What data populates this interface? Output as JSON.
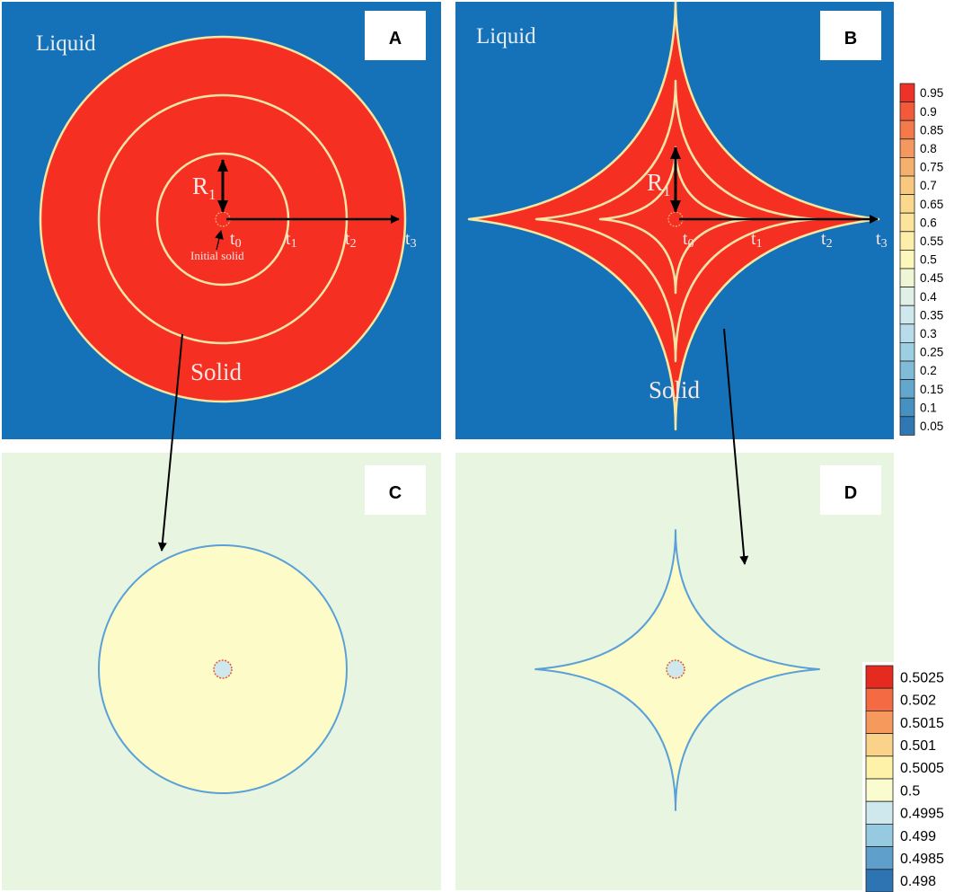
{
  "panels": {
    "a": {
      "letter": "A",
      "liquid": "Liquid",
      "solid": "Solid",
      "r1": "R",
      "r1_sub": "1",
      "initial_solid": "Initial solid",
      "times": [
        {
          "t": "t",
          "s": "0"
        },
        {
          "t": "t",
          "s": "1"
        },
        {
          "t": "t",
          "s": "2"
        },
        {
          "t": "t",
          "s": "3"
        }
      ]
    },
    "b": {
      "letter": "B",
      "liquid": "Liquid",
      "solid": "Solid",
      "r1": "R",
      "r1_sub": "1",
      "times": [
        {
          "t": "t",
          "s": "0"
        },
        {
          "t": "t",
          "s": "1"
        },
        {
          "t": "t",
          "s": "2"
        },
        {
          "t": "t",
          "s": "3"
        }
      ]
    },
    "c": {
      "letter": "C"
    },
    "d": {
      "letter": "D"
    }
  },
  "legend_top": {
    "labels": [
      "0.95",
      "0.9",
      "0.85",
      "0.8",
      "0.75",
      "0.7",
      "0.65",
      "0.6",
      "0.55",
      "0.5",
      "0.45",
      "0.4",
      "0.35",
      "0.3",
      "0.25",
      "0.2",
      "0.15",
      "0.1",
      "0.05"
    ],
    "colors": [
      "#ee3228",
      "#f25a3a",
      "#f47a4c",
      "#f4985e",
      "#f6b06e",
      "#f8c87e",
      "#fad88c",
      "#fce49a",
      "#fdeeaa",
      "#fdf7bb",
      "#eef6d6",
      "#e0f0e6",
      "#cfe8ee",
      "#b8dcea",
      "#9ccfe2",
      "#80bcd8",
      "#62a8ce",
      "#4690c2",
      "#2f78b4"
    ]
  },
  "legend_bottom": {
    "labels": [
      "0.5025",
      "0.502",
      "0.5015",
      "0.501",
      "0.5005",
      "0.5",
      "0.4995",
      "0.499",
      "0.4985",
      "0.498"
    ],
    "colors": [
      "#e52b20",
      "#f46a42",
      "#f59a5c",
      "#fad28a",
      "#fdf2a8",
      "#fbfbd0",
      "#cfe8ee",
      "#96cae0",
      "#5e9fcc",
      "#2f74b2"
    ]
  },
  "colors": {
    "liquid": "#1672b8",
    "solid": "#f53022",
    "field": "#e8f5e0",
    "solid_c": "#fdfbc8",
    "interface": "#5aa0d8",
    "seed": "#e85a2a"
  }
}
